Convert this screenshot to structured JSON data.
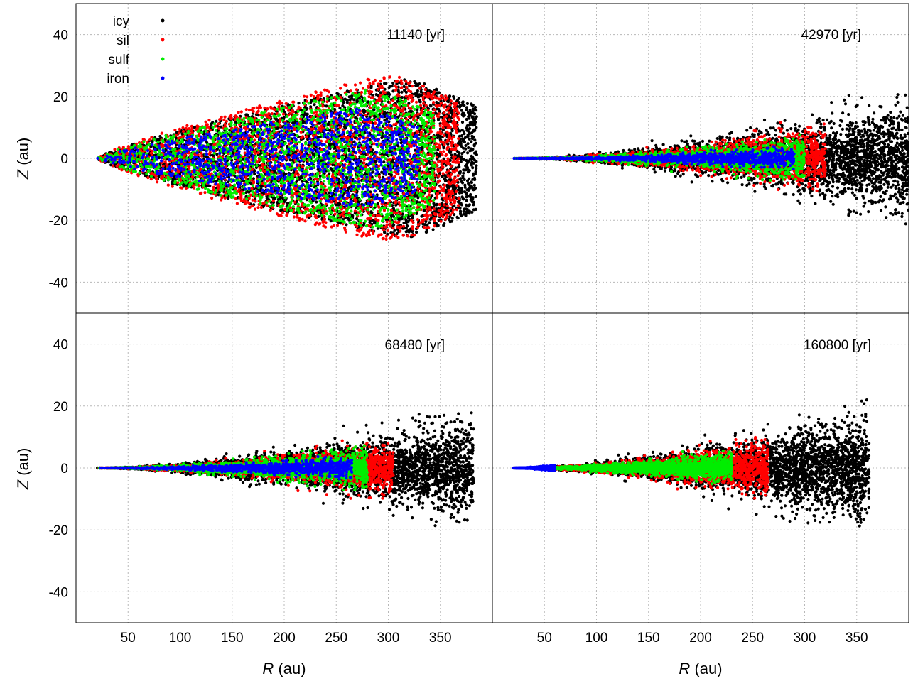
{
  "chart_data": {
    "type": "scatter",
    "layout": "2x2 panels",
    "xlabel": "R",
    "xlabel_unit": "(au)",
    "ylabel": "Z",
    "ylabel_unit": "(au)",
    "xlim": [
      0,
      400
    ],
    "ylim": [
      -50,
      50
    ],
    "x_ticks": [
      "50",
      "100",
      "150",
      "200",
      "250",
      "300",
      "350"
    ],
    "y_ticks": [
      "40",
      "20",
      "0",
      "-20",
      "-40"
    ],
    "grid": true,
    "legend": {
      "placement": "top-left",
      "entries": [
        {
          "name": "icy",
          "color": "#000000"
        },
        {
          "name": "sil",
          "color": "#ff0000"
        },
        {
          "name": "sulf",
          "color": "#00ee00"
        },
        {
          "name": "iron",
          "color": "#0000ff"
        }
      ]
    },
    "panels": [
      {
        "time_label": "11140 [yr]",
        "series": [
          {
            "name": "icy",
            "r_range": [
              20,
              385
            ],
            "max_abs_z": 32
          },
          {
            "name": "sil",
            "r_range": [
              20,
              368
            ],
            "max_abs_z": 34
          },
          {
            "name": "sulf",
            "r_range": [
              20,
              345
            ],
            "max_abs_z": 28
          },
          {
            "name": "iron",
            "r_range": [
              20,
              330
            ],
            "max_abs_z": 20
          }
        ]
      },
      {
        "time_label": "42970 [yr]",
        "series": [
          {
            "name": "icy",
            "r_range": [
              20,
              400
            ],
            "max_abs_z": 22
          },
          {
            "name": "sil",
            "r_range": [
              20,
              320
            ],
            "max_abs_z": 12
          },
          {
            "name": "sulf",
            "r_range": [
              20,
              300
            ],
            "max_abs_z": 8
          },
          {
            "name": "iron",
            "r_range": [
              20,
              290
            ],
            "max_abs_z": 4
          }
        ]
      },
      {
        "time_label": "68480 [yr]",
        "series": [
          {
            "name": "icy",
            "r_range": [
              20,
              382
            ],
            "max_abs_z": 20
          },
          {
            "name": "sil",
            "r_range": [
              20,
              305
            ],
            "max_abs_z": 10
          },
          {
            "name": "sulf",
            "r_range": [
              20,
              280
            ],
            "max_abs_z": 8
          },
          {
            "name": "iron",
            "r_range": [
              20,
              265
            ],
            "max_abs_z": 4
          }
        ]
      },
      {
        "time_label": "160800 [yr]",
        "series": [
          {
            "name": "icy",
            "r_range": [
              20,
              362
            ],
            "max_abs_z": 22
          },
          {
            "name": "sil",
            "r_range": [
              20,
              265
            ],
            "max_abs_z": 10
          },
          {
            "name": "sulf",
            "r_range": [
              20,
              230
            ],
            "max_abs_z": 6
          },
          {
            "name": "iron",
            "r_range": [
              20,
              60
            ],
            "max_abs_z": 1
          }
        ]
      }
    ]
  }
}
